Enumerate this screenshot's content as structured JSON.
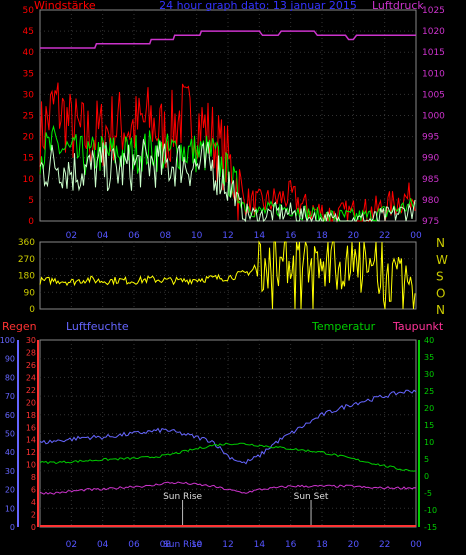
{
  "chart_data": [
    {
      "type": "line",
      "title": "24 hour graph dato: 13 januar 2015",
      "left_label": "Windstärke",
      "right_label": "Luftdruck",
      "y_left": {
        "min": 0,
        "max": 50,
        "ticks": [
          0,
          5,
          10,
          15,
          20,
          25,
          30,
          35,
          40,
          45,
          50
        ]
      },
      "y_right": {
        "min": 975,
        "max": 1025,
        "ticks": [
          975,
          980,
          985,
          990,
          995,
          1000,
          1005,
          1010,
          1015,
          1020,
          1025
        ]
      },
      "x_ticks": [
        "02",
        "04",
        "06",
        "08",
        "10",
        "12",
        "14",
        "16",
        "18",
        "20",
        "22",
        "00"
      ],
      "grid": true,
      "colors": {
        "gust": "#ff0000",
        "wind_avg": "#00ee00",
        "wind_low": "#ccffcc",
        "pressure": "#cc33cc"
      },
      "series": [
        {
          "name": "",
          "role": "gust",
          "x": [
            0,
            1,
            2,
            3,
            4,
            5,
            6,
            7,
            8,
            9,
            10,
            11,
            12,
            13,
            14,
            15,
            16,
            17,
            18,
            19,
            20,
            21,
            22,
            23,
            24
          ],
          "values": [
            20,
            28,
            22,
            20,
            21,
            23,
            22,
            24,
            20,
            25,
            24,
            20,
            14,
            5,
            4,
            5,
            6,
            3,
            2,
            1,
            2,
            2,
            3,
            5,
            6
          ]
        },
        {
          "name": "",
          "role": "wind_avg",
          "x": [
            0,
            1,
            2,
            3,
            4,
            5,
            6,
            7,
            8,
            9,
            10,
            11,
            12,
            13,
            14,
            15,
            16,
            17,
            18,
            19,
            20,
            21,
            22,
            23,
            24
          ],
          "values": [
            16,
            18,
            16,
            15,
            16,
            16,
            16,
            17,
            16,
            17,
            16,
            16,
            11,
            4,
            2,
            3,
            3,
            2,
            1,
            1,
            1,
            1,
            2,
            3,
            4
          ]
        },
        {
          "name": "",
          "role": "wind_low",
          "x": [
            0,
            1,
            2,
            3,
            4,
            5,
            6,
            7,
            8,
            9,
            10,
            11,
            12,
            13,
            14,
            15,
            16,
            17,
            18,
            19,
            20,
            21,
            22,
            23,
            24
          ],
          "values": [
            12,
            14,
            12,
            12,
            13,
            12,
            13,
            14,
            13,
            14,
            13,
            13,
            9,
            2,
            1,
            2,
            2,
            1,
            0,
            0,
            0,
            0,
            1,
            2,
            3
          ]
        },
        {
          "name": "",
          "role": "pressure",
          "x": [
            0,
            3.5,
            3.6,
            7,
            7.1,
            8.5,
            8.6,
            10.2,
            10.3,
            14,
            14.2,
            15.2,
            15.4,
            17.5,
            17.7,
            19.5,
            19.7,
            20,
            20.2,
            24
          ],
          "values": [
            1016,
            1016,
            1017,
            1017,
            1018,
            1018,
            1019,
            1019,
            1020,
            1020,
            1019,
            1019,
            1020,
            1020,
            1019,
            1019,
            1018,
            1018,
            1019,
            1019
          ]
        }
      ]
    },
    {
      "type": "line",
      "left_ticks": [
        "0",
        "90",
        "180",
        "270",
        "360"
      ],
      "right_labels": [
        "N",
        "W",
        "S",
        "O",
        "N"
      ],
      "y_range": [
        0,
        360
      ],
      "x_ticks": [
        "02",
        "04",
        "06",
        "08",
        "10",
        "12",
        "14",
        "16",
        "18",
        "20",
        "22",
        "00"
      ],
      "colors": {
        "direction": "#ffff00"
      },
      "series": [
        {
          "name": "",
          "x": [
            0,
            1,
            2,
            3,
            4,
            5,
            6,
            7,
            8,
            9,
            10,
            11,
            12,
            13,
            14,
            15,
            16,
            17,
            18,
            19,
            20,
            21,
            22,
            23,
            24
          ],
          "values": [
            150,
            155,
            145,
            160,
            150,
            155,
            150,
            160,
            155,
            150,
            160,
            165,
            170,
            190,
            220,
            240,
            260,
            250,
            200,
            230,
            220,
            190,
            160,
            150,
            120
          ]
        }
      ]
    },
    {
      "type": "line",
      "labels": {
        "regen": "Regen",
        "luftfeuchte": "Luftfeuchte",
        "temperatur": "Temperatur",
        "taupunkt": "Taupunkt"
      },
      "y_humidity": {
        "min": 0,
        "max": 100,
        "ticks": [
          0,
          10,
          20,
          30,
          40,
          50,
          60,
          70,
          80,
          90,
          100
        ]
      },
      "y_rain": {
        "min": 0,
        "max": 30,
        "ticks": [
          0,
          2,
          4,
          6,
          8,
          10,
          12,
          14,
          16,
          18,
          20,
          22,
          24,
          26,
          28,
          30
        ]
      },
      "y_temp": {
        "min": -15,
        "max": 40,
        "ticks": [
          -15,
          -10,
          -5,
          0,
          5,
          10,
          15,
          20,
          25,
          30,
          35,
          40
        ]
      },
      "x_ticks": [
        "02",
        "04",
        "06",
        "08",
        "Sun Rise",
        "10",
        "12",
        "14",
        "16",
        "18",
        "20",
        "22",
        "00"
      ],
      "annotations": [
        {
          "text": "Sun Rise",
          "x": 9.1
        },
        {
          "text": "Sun Set",
          "x": 17.3
        }
      ],
      "colors": {
        "rain": "#ff3333",
        "humidity": "#6666ff",
        "temperature": "#00cc00",
        "dewpoint": "#cc33cc",
        "sun": "#bbbbbb"
      },
      "series": [
        {
          "name": "",
          "role": "humidity",
          "x": [
            0,
            1,
            2,
            3,
            4,
            5,
            6,
            7,
            8,
            9,
            10,
            11,
            12,
            13,
            14,
            15,
            16,
            17,
            18,
            19,
            20,
            21,
            22,
            23,
            24
          ],
          "values": [
            45,
            46,
            47,
            48,
            48,
            49,
            50,
            51,
            52,
            50,
            48,
            46,
            38,
            34,
            38,
            45,
            50,
            55,
            60,
            63,
            66,
            68,
            70,
            72,
            73
          ]
        },
        {
          "name": "",
          "role": "temperature",
          "x": [
            0,
            1,
            2,
            3,
            4,
            5,
            6,
            7,
            8,
            9,
            10,
            11,
            12,
            13,
            14,
            15,
            16,
            17,
            18,
            19,
            20,
            21,
            22,
            23,
            24
          ],
          "values": [
            4,
            4,
            4.2,
            4.5,
            4.8,
            5,
            5.2,
            5.5,
            6,
            7,
            8,
            9,
            9.5,
            9.5,
            9,
            8.5,
            8,
            7.5,
            7,
            6,
            5,
            4,
            3,
            2,
            1.5
          ]
        },
        {
          "name": "",
          "role": "dewpoint",
          "x": [
            0,
            1,
            2,
            3,
            4,
            5,
            6,
            7,
            8,
            9,
            10,
            11,
            12,
            13,
            14,
            15,
            16,
            17,
            18,
            19,
            20,
            21,
            22,
            23,
            24
          ],
          "values": [
            -5,
            -5,
            -4.5,
            -4,
            -4,
            -3.5,
            -3,
            -3,
            -2,
            -2,
            -2.5,
            -3,
            -4,
            -5,
            -4,
            -3.5,
            -3,
            -3,
            -3,
            -3,
            -3,
            -3.5,
            -3.5,
            -3.5,
            -3.5
          ]
        },
        {
          "name": "",
          "role": "rain",
          "x": [
            0,
            24
          ],
          "values": [
            0,
            0
          ]
        }
      ]
    }
  ]
}
